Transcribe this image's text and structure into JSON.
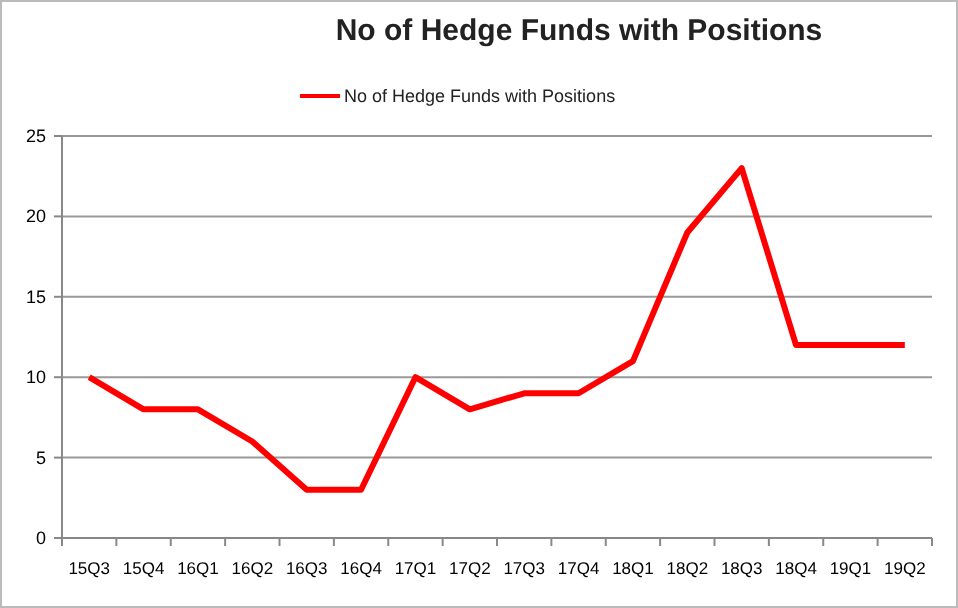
{
  "chart_data": {
    "type": "line",
    "title": "No of Hedge Funds with Positions",
    "categories": [
      "15Q3",
      "15Q4",
      "16Q1",
      "16Q2",
      "16Q3",
      "16Q4",
      "17Q1",
      "17Q2",
      "17Q3",
      "17Q4",
      "18Q1",
      "18Q2",
      "18Q3",
      "18Q4",
      "19Q1",
      "19Q2"
    ],
    "series": [
      {
        "name": "No of Hedge Funds with Positions",
        "color": "#ff0000",
        "values": [
          10,
          8,
          8,
          6,
          3,
          3,
          10,
          8,
          9,
          9,
          11,
          19,
          23,
          12,
          12,
          12
        ]
      }
    ],
    "ylim": [
      0,
      25
    ],
    "yticks": [
      0,
      5,
      10,
      15,
      20,
      25
    ],
    "grid": "y",
    "legend": "top",
    "marker": "none",
    "line_style": "solid"
  }
}
